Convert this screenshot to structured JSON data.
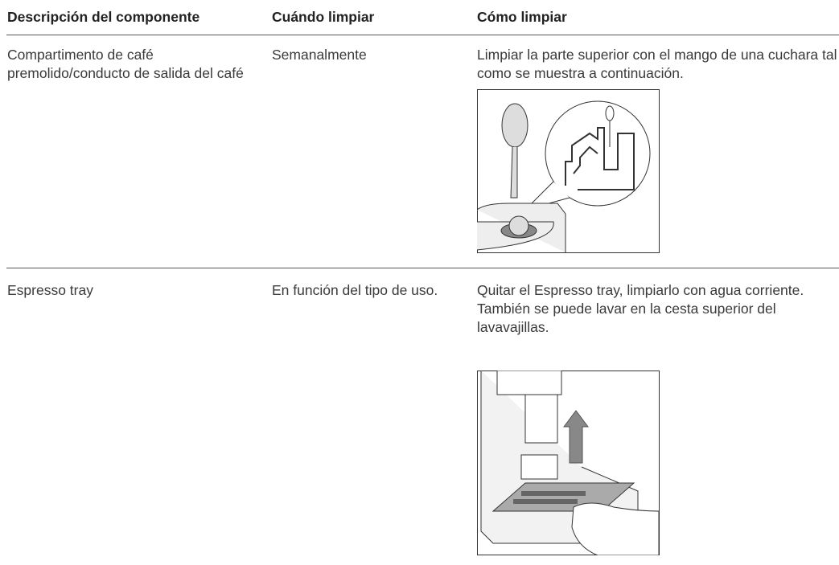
{
  "table": {
    "header": [
      "Descripción del componente",
      "Cuándo limpiar",
      "Cómo limpiar"
    ],
    "rows": [
      [
        "Compartimento de café premolido/conducto de salida del café",
        "Semanalmente",
        "Limpiar la parte superior con el mango de una cuchara tal como se muestra a continuación."
      ],
      [
        "Espresso tray",
        "En función del tipo de uso.",
        "Quitar el Espresso tray, limpiarlo con agua corriente. También se puede lavar en la cesta superior del lavavajillas."
      ]
    ]
  }
}
